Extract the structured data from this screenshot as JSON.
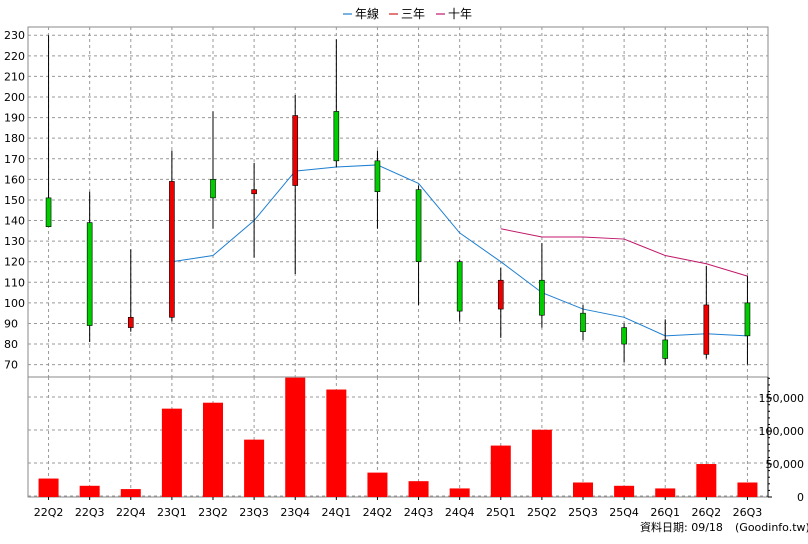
{
  "legend": [
    {
      "label": "年線",
      "color": "#1f7fd0"
    },
    {
      "label": "三年",
      "color": "#d02020"
    },
    {
      "label": "十年",
      "color": "#c0186a"
    }
  ],
  "source_note": "資料日期: 09/18",
  "source_site": "(Goodinfo.tw)",
  "chart_data": [
    {
      "type": "candlestick",
      "categories": [
        "22Q2",
        "22Q3",
        "22Q4",
        "23Q1",
        "23Q2",
        "23Q3",
        "23Q4",
        "24Q1",
        "24Q2",
        "24Q3",
        "24Q4",
        "25Q1",
        "25Q2",
        "25Q3",
        "25Q4",
        "26Q1",
        "26Q2",
        "26Q3"
      ],
      "y_ticks": [
        70,
        80,
        90,
        100,
        110,
        120,
        130,
        140,
        150,
        160,
        170,
        180,
        190,
        200,
        210,
        220,
        230
      ],
      "ylim": [
        64,
        234
      ],
      "grid": true,
      "legend_position": "top-center",
      "colors": {
        "up": "#00cc00",
        "down": "#ee0000"
      },
      "candles": [
        {
          "open": 137,
          "close": 151,
          "high": 230,
          "low": 137
        },
        {
          "open": 89,
          "close": 139,
          "high": 154,
          "low": 81
        },
        {
          "open": 93,
          "close": 88,
          "high": 126,
          "low": 86
        },
        {
          "open": 159,
          "close": 93,
          "high": 174,
          "low": 91
        },
        {
          "open": 151,
          "close": 160,
          "high": 193,
          "low": 136
        },
        {
          "open": 155,
          "close": 153,
          "high": 168,
          "low": 122
        },
        {
          "open": 191,
          "close": 157,
          "high": 201,
          "low": 114
        },
        {
          "open": 169,
          "close": 193,
          "high": 228,
          "low": 166
        },
        {
          "open": 154,
          "close": 169,
          "high": 174,
          "low": 136
        },
        {
          "open": 120,
          "close": 155,
          "high": 157,
          "low": 99
        },
        {
          "open": 96,
          "close": 120,
          "high": 121,
          "low": 91
        },
        {
          "open": 111,
          "close": 97,
          "high": 117,
          "low": 83
        },
        {
          "open": 94,
          "close": 111,
          "high": 129,
          "low": 88
        },
        {
          "open": 86,
          "close": 95,
          "high": 99,
          "low": 82
        },
        {
          "open": 80,
          "close": 88,
          "high": 90,
          "low": 71
        },
        {
          "open": 73,
          "close": 82,
          "high": 92,
          "low": 70
        },
        {
          "open": 99,
          "close": 75,
          "high": 118,
          "low": 73
        },
        {
          "open": 84,
          "close": 100,
          "high": 113,
          "low": 70
        }
      ],
      "series": [
        {
          "name": "年線",
          "values": [
            null,
            null,
            null,
            120,
            123,
            140,
            164,
            166,
            167,
            158,
            134,
            120,
            105,
            97,
            93,
            84,
            85,
            84
          ]
        },
        {
          "name": "十年",
          "values": [
            null,
            null,
            null,
            null,
            null,
            null,
            null,
            null,
            null,
            null,
            null,
            136,
            132,
            132,
            131,
            123,
            119,
            113
          ]
        }
      ]
    },
    {
      "type": "bar",
      "categories": [
        "22Q2",
        "22Q3",
        "22Q4",
        "23Q1",
        "23Q2",
        "23Q3",
        "23Q4",
        "24Q1",
        "24Q2",
        "24Q3",
        "24Q4",
        "25Q1",
        "25Q2",
        "25Q3",
        "25Q4",
        "26Q1",
        "26Q2",
        "26Q3"
      ],
      "values": [
        28000,
        17000,
        12000,
        134000,
        143000,
        87000,
        181000,
        163000,
        37000,
        24000,
        13000,
        78000,
        102000,
        22000,
        17000,
        13000,
        50000,
        22000
      ],
      "y_ticks": [
        "0",
        "50,000",
        "100,000",
        "150,000"
      ],
      "y_tick_values": [
        0,
        50000,
        100000,
        150000
      ],
      "ylim": [
        0,
        182000
      ],
      "color": "#ff0000"
    }
  ]
}
